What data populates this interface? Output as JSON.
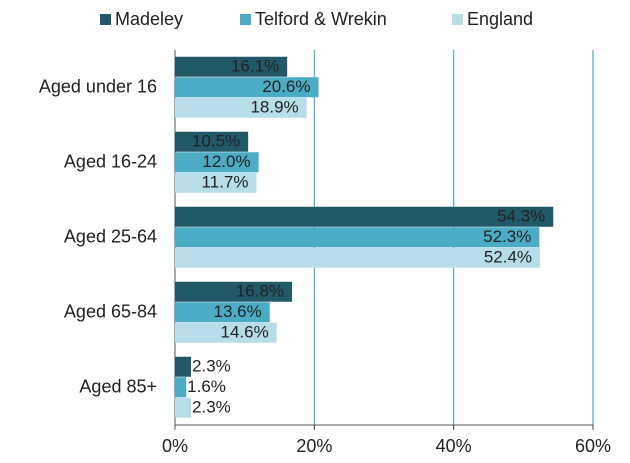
{
  "chart_data": {
    "type": "bar",
    "orientation": "horizontal",
    "categories": [
      "Aged under 16",
      "Aged 16-24",
      "Aged 25-64",
      "Aged 65-84",
      "Aged 85+"
    ],
    "series": [
      {
        "name": "Madeley",
        "color": "#215968",
        "values": [
          16.1,
          10.5,
          54.3,
          16.8,
          2.3
        ],
        "value_labels": [
          "16.1%",
          "10.5%",
          "54.3%",
          "16.8%",
          "2.3%"
        ]
      },
      {
        "name": "Telford & Wrekin",
        "color": "#4bacc6",
        "values": [
          20.6,
          12.0,
          52.3,
          13.6,
          1.6
        ],
        "value_labels": [
          "20.6%",
          "12.0%",
          "52.3%",
          "13.6%",
          "1.6%"
        ]
      },
      {
        "name": "England",
        "color": "#b7dee8",
        "values": [
          18.9,
          11.7,
          52.4,
          14.6,
          2.3
        ],
        "value_labels": [
          "18.9%",
          "11.7%",
          "52.4%",
          "14.6%",
          "2.3%"
        ]
      }
    ],
    "xlim": [
      0,
      60
    ],
    "xticks": [
      {
        "value": 0,
        "label": "0%"
      },
      {
        "value": 20,
        "label": "20%"
      },
      {
        "value": 40,
        "label": "40%"
      },
      {
        "value": 60,
        "label": "60%"
      }
    ],
    "grid": true,
    "legend": "top"
  }
}
